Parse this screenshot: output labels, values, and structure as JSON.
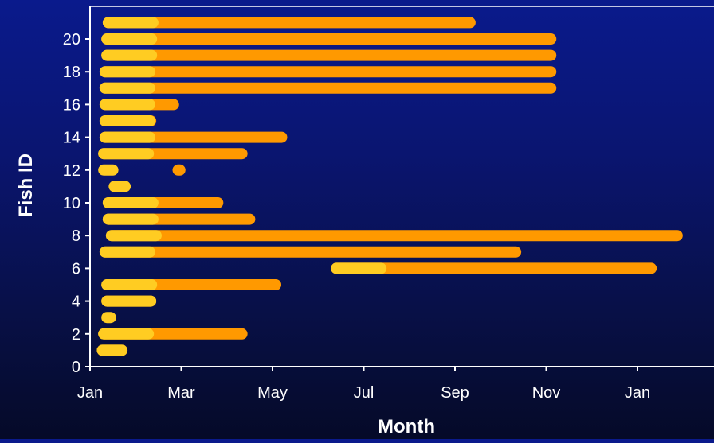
{
  "chart_data": {
    "type": "scatter",
    "title": "",
    "xlabel": "Month",
    "ylabel": "Fish ID",
    "x_tick_labels": [
      "Jan",
      "Mar",
      "May",
      "Jul",
      "Sep",
      "Nov",
      "Jan"
    ],
    "x_tick_values": [
      0,
      2,
      4,
      6,
      8,
      10,
      12
    ],
    "y_tick_labels": [
      "0",
      "2",
      "4",
      "6",
      "8",
      "10",
      "12",
      "14",
      "16",
      "18",
      "20"
    ],
    "y_tick_values": [
      0,
      2,
      4,
      6,
      8,
      10,
      12,
      14,
      16,
      18,
      20
    ],
    "xlim": [
      0,
      13.5
    ],
    "ylim": [
      0,
      22
    ],
    "x_unit": "months since Jan 1",
    "grid": false,
    "legend": "none",
    "colors": {
      "early": "#ffcc22",
      "late": "#ff9900"
    },
    "series": [
      {
        "fish_id": 1,
        "x_start": 0.27,
        "x_end": 0.7
      },
      {
        "fish_id": 2,
        "x_start": 0.3,
        "x_end": 3.33
      },
      {
        "fish_id": 3,
        "x_start": 0.37,
        "x_end": 0.45
      },
      {
        "fish_id": 4,
        "x_start": 0.37,
        "x_end": 1.33
      },
      {
        "fish_id": 5,
        "x_start": 0.37,
        "x_end": 4.07
      },
      {
        "fish_id": 6,
        "x_start": 5.4,
        "x_end": 12.3
      },
      {
        "fish_id": 7,
        "x_start": 0.33,
        "x_end": 9.33
      },
      {
        "fish_id": 8,
        "x_start": 0.47,
        "x_end": 12.87
      },
      {
        "fish_id": 9,
        "x_start": 0.4,
        "x_end": 3.5
      },
      {
        "fish_id": 10,
        "x_start": 0.4,
        "x_end": 2.8
      },
      {
        "fish_id": 11,
        "x_start": 0.53,
        "x_end": 0.77
      },
      {
        "fish_id": 12,
        "x_start": 0.3,
        "x_end": 0.5
      },
      {
        "fish_id": 12,
        "x_start": 1.93,
        "x_end": 1.97
      },
      {
        "fish_id": 13,
        "x_start": 0.3,
        "x_end": 3.33
      },
      {
        "fish_id": 14,
        "x_start": 0.33,
        "x_end": 4.2
      },
      {
        "fish_id": 15,
        "x_start": 0.33,
        "x_end": 1.33
      },
      {
        "fish_id": 16,
        "x_start": 0.33,
        "x_end": 1.83
      },
      {
        "fish_id": 17,
        "x_start": 0.33,
        "x_end": 10.1
      },
      {
        "fish_id": 18,
        "x_start": 0.33,
        "x_end": 10.1
      },
      {
        "fish_id": 19,
        "x_start": 0.37,
        "x_end": 10.1
      },
      {
        "fish_id": 20,
        "x_start": 0.37,
        "x_end": 10.1
      },
      {
        "fish_id": 21,
        "x_start": 0.4,
        "x_end": 8.33
      }
    ]
  }
}
